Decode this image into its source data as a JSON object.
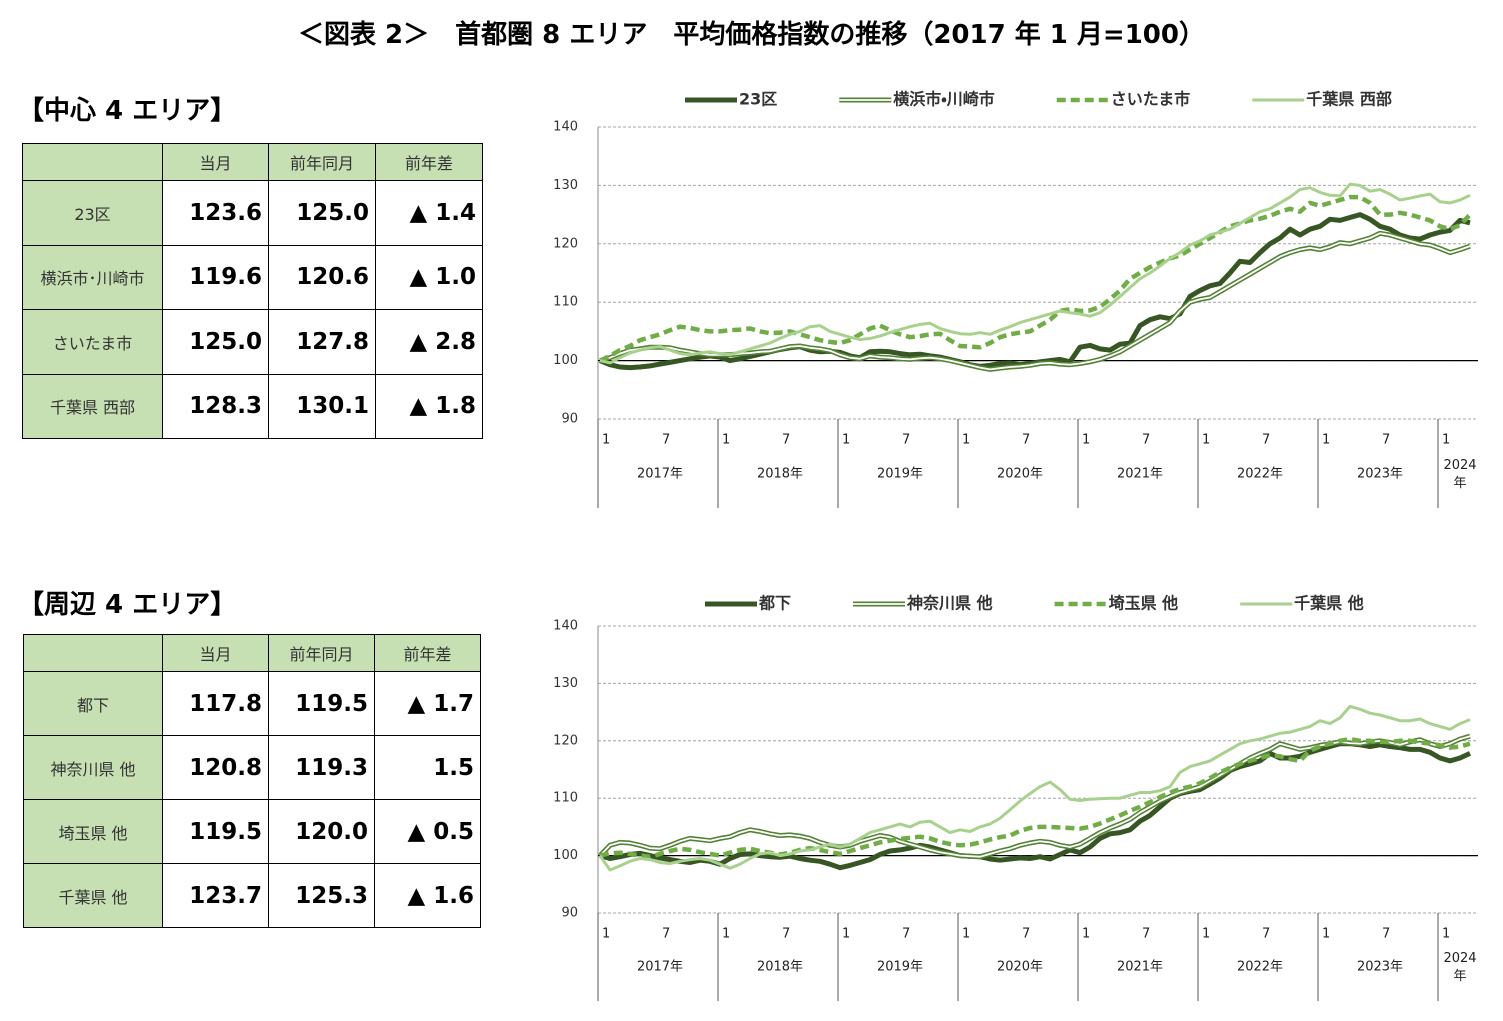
{
  "title": "＜図表 2＞　首都圏 8 エリア　平均価格指数の推移（2017 年 1 月=100）",
  "tables": [
    {
      "heading": "【中心 4 エリア】",
      "header": [
        "当月",
        "前年同月",
        "前年差"
      ],
      "rows": [
        [
          "23区",
          "123.6",
          "125.0",
          "▲ 1.4"
        ],
        [
          "横浜市･川崎市",
          "119.6",
          "120.6",
          "▲ 1.0"
        ],
        [
          "さいたま市",
          "125.0",
          "127.8",
          "▲ 2.8"
        ],
        [
          "千葉県 西部",
          "128.3",
          "130.1",
          "▲ 1.8"
        ]
      ]
    },
    {
      "heading": "【周辺 4 エリア】",
      "header": [
        "当月",
        "前年同月",
        "前年差"
      ],
      "rows": [
        [
          "都下",
          "117.8",
          "119.5",
          "▲ 1.7"
        ],
        [
          "神奈川県 他",
          "120.8",
          "119.3",
          "1.5"
        ],
        [
          "埼玉県 他",
          "119.5",
          "120.0",
          "▲ 0.5"
        ],
        [
          "千葉県 他",
          "123.7",
          "125.3",
          "▲ 1.6"
        ]
      ]
    }
  ],
  "chart_data": [
    {
      "type": "line",
      "categories": [
        "1",
        null,
        null,
        null,
        null,
        null,
        "7",
        null,
        null,
        null,
        null,
        null,
        "1",
        null,
        null,
        null,
        null,
        null,
        "7",
        null,
        null,
        null,
        null,
        null,
        "1",
        null,
        null,
        null,
        null,
        null,
        "7",
        null,
        null,
        null,
        null,
        null,
        "1",
        null,
        null,
        null,
        null,
        null,
        "7",
        null,
        null,
        null,
        null,
        null,
        "1",
        null,
        null,
        null,
        null,
        null,
        "7",
        null,
        null,
        null,
        null,
        null,
        "1",
        null,
        null,
        null,
        null,
        null,
        "7",
        null,
        null,
        null,
        null,
        null,
        "1",
        null,
        null,
        null,
        null,
        null,
        "7",
        null,
        null,
        null,
        null,
        null,
        "1",
        null,
        null,
        null
      ],
      "years": [
        "2017年",
        "2018年",
        "2019年",
        "2020年",
        "2021年",
        "2022年",
        "2023年",
        "2024年"
      ],
      "ylim": [
        90,
        140
      ],
      "yticks": [
        90,
        100,
        110,
        120,
        130,
        140
      ],
      "grid": true,
      "baseline": 100,
      "legend": "top",
      "series": [
        {
          "name": "23区",
          "color": "#375623",
          "style": "solid-thick",
          "values": [
            100,
            99.3,
            98.9,
            98.8,
            98.9,
            99.1,
            99.4,
            99.7,
            100.0,
            100.3,
            100.6,
            100.8,
            100.6,
            100.0,
            100.3,
            100.7,
            101.1,
            101.5,
            101.9,
            102.2,
            102.4,
            101.8,
            101.5,
            101.6,
            101.4,
            100.8,
            100.5,
            101.5,
            101.6,
            101.5,
            101.2,
            101.0,
            101.1,
            100.8,
            100.6,
            100.2,
            99.8,
            99.3,
            99.0,
            99.2,
            99.5,
            99.6,
            99.3,
            99.5,
            99.8,
            100.0,
            100.2,
            99.8,
            102.3,
            102.6,
            102.0,
            101.8,
            102.8,
            103.0,
            106.0,
            107.0,
            107.5,
            107.2,
            108.0,
            111.0,
            112.0,
            112.8,
            113.2,
            115.0,
            117.0,
            116.8,
            118.5,
            120.0,
            121.0,
            122.5,
            121.5,
            122.5,
            123.0,
            124.2,
            124.0,
            124.5,
            125.0,
            124.2,
            123.0,
            122.5,
            121.5,
            121.0,
            120.8,
            121.5,
            122.0,
            122.3,
            124.0,
            123.6
          ]
        },
        {
          "name": "横浜市・川崎市",
          "color": "#548235",
          "style": "double",
          "values": [
            100,
            100.5,
            101.2,
            101.8,
            102.0,
            102.3,
            102.3,
            102.2,
            101.8,
            101.5,
            101.2,
            101.0,
            101.0,
            101.0,
            101.2,
            101.3,
            101.5,
            101.6,
            102.0,
            102.4,
            102.5,
            102.2,
            102.0,
            101.7,
            101.0,
            100.5,
            100.3,
            100.8,
            100.6,
            100.5,
            100.3,
            100.2,
            100.4,
            100.5,
            100.3,
            100.0,
            99.6,
            99.2,
            98.8,
            98.5,
            98.7,
            98.9,
            99.0,
            99.2,
            99.5,
            99.6,
            99.4,
            99.3,
            99.5,
            99.8,
            100.2,
            100.8,
            101.5,
            102.5,
            103.5,
            104.5,
            105.5,
            106.5,
            108.5,
            110.0,
            110.5,
            110.8,
            111.8,
            112.8,
            113.8,
            114.8,
            115.8,
            116.8,
            117.8,
            118.5,
            119.0,
            119.3,
            119.0,
            119.5,
            120.2,
            120.0,
            120.5,
            121.0,
            121.8,
            121.5,
            121.0,
            120.5,
            120.0,
            119.8,
            119.2,
            118.5,
            119.0,
            119.6
          ]
        },
        {
          "name": "さいたま市",
          "color": "#70ad47",
          "style": "dashed",
          "values": [
            100,
            100.8,
            101.8,
            102.5,
            103.5,
            104.0,
            104.5,
            105.2,
            105.8,
            105.6,
            105.2,
            105.0,
            105.0,
            105.2,
            105.3,
            105.5,
            105.0,
            104.7,
            104.8,
            105.0,
            104.5,
            104.0,
            103.5,
            103.2,
            103.0,
            103.5,
            104.5,
            105.5,
            106.0,
            105.2,
            104.5,
            104.0,
            104.2,
            104.5,
            104.6,
            103.5,
            102.5,
            102.4,
            102.3,
            103.0,
            104.0,
            104.5,
            104.8,
            105.0,
            106.0,
            107.0,
            108.5,
            108.8,
            108.5,
            108.6,
            109.2,
            110.5,
            112.0,
            114.0,
            115.0,
            116.0,
            116.8,
            117.5,
            118.0,
            119.0,
            120.0,
            121.0,
            122.0,
            123.0,
            123.5,
            124.0,
            124.3,
            124.8,
            125.5,
            126.0,
            125.5,
            127.0,
            126.5,
            127.0,
            127.5,
            128.0,
            128.0,
            127.0,
            125.0,
            125.0,
            125.3,
            125.0,
            124.5,
            124.0,
            123.0,
            122.5,
            123.2,
            125.0
          ]
        },
        {
          "name": "千葉県 西部",
          "color": "#a9d18e",
          "style": "solid",
          "values": [
            100,
            99.6,
            100.5,
            101.3,
            101.8,
            102.2,
            102.4,
            101.8,
            101.2,
            101.0,
            101.3,
            101.5,
            101.2,
            101.0,
            101.5,
            102.0,
            102.5,
            103.0,
            103.8,
            104.5,
            105.0,
            105.8,
            106.0,
            105.0,
            104.5,
            104.0,
            103.6,
            103.8,
            104.2,
            104.8,
            105.3,
            105.8,
            106.2,
            106.4,
            105.5,
            105.0,
            104.6,
            104.5,
            104.8,
            104.5,
            105.2,
            105.8,
            106.5,
            107.0,
            107.5,
            108.0,
            108.5,
            108.2,
            108.0,
            107.6,
            108.2,
            109.5,
            111.0,
            112.5,
            114.0,
            115.0,
            116.2,
            117.5,
            118.5,
            119.8,
            120.5,
            121.5,
            122.0,
            122.5,
            123.5,
            124.5,
            125.5,
            126.0,
            127.0,
            128.0,
            129.3,
            129.6,
            128.8,
            128.3,
            128.2,
            130.2,
            130.0,
            129.0,
            129.3,
            128.5,
            127.5,
            127.8,
            128.2,
            128.5,
            127.2,
            127.0,
            127.5,
            128.3
          ]
        }
      ]
    },
    {
      "type": "line",
      "categories": [
        "1",
        null,
        null,
        null,
        null,
        null,
        "7",
        null,
        null,
        null,
        null,
        null,
        "1",
        null,
        null,
        null,
        null,
        null,
        "7",
        null,
        null,
        null,
        null,
        null,
        "1",
        null,
        null,
        null,
        null,
        null,
        "7",
        null,
        null,
        null,
        null,
        null,
        "1",
        null,
        null,
        null,
        null,
        null,
        "7",
        null,
        null,
        null,
        null,
        null,
        "1",
        null,
        null,
        null,
        null,
        null,
        "7",
        null,
        null,
        null,
        null,
        null,
        "1",
        null,
        null,
        null,
        null,
        null,
        "7",
        null,
        null,
        null,
        null,
        null,
        "1",
        null,
        null,
        null,
        null,
        null,
        "7",
        null,
        null,
        null,
        null,
        null,
        "1",
        null,
        null,
        null
      ],
      "years": [
        "2017年",
        "2018年",
        "2019年",
        "2020年",
        "2021年",
        "2022年",
        "2023年",
        "2024年"
      ],
      "ylim": [
        90,
        140
      ],
      "yticks": [
        90,
        100,
        110,
        120,
        130,
        140
      ],
      "grid": true,
      "baseline": 100,
      "legend": "top",
      "series": [
        {
          "name": "都下",
          "color": "#375623",
          "style": "solid-thick",
          "values": [
            100,
            99.5,
            99.8,
            100.2,
            100.4,
            100.0,
            99.6,
            99.3,
            99.0,
            98.8,
            99.2,
            99.0,
            98.5,
            99.5,
            100.2,
            100.3,
            100.0,
            99.8,
            99.7,
            99.9,
            99.5,
            99.2,
            99.0,
            98.5,
            97.9,
            98.3,
            98.8,
            99.3,
            100.2,
            100.8,
            101.0,
            101.3,
            101.8,
            101.5,
            101.0,
            100.5,
            100.0,
            99.9,
            99.8,
            99.4,
            99.2,
            99.4,
            99.6,
            99.5,
            99.8,
            99.4,
            100.2,
            101.0,
            100.5,
            101.5,
            103.0,
            103.8,
            104.0,
            104.5,
            106.0,
            107.0,
            108.5,
            110.0,
            110.8,
            111.2,
            111.5,
            112.5,
            113.5,
            114.8,
            115.5,
            116.0,
            116.5,
            117.8,
            117.0,
            117.0,
            117.3,
            118.0,
            118.5,
            119.0,
            119.5,
            119.5,
            119.3,
            119.0,
            119.3,
            119.0,
            118.8,
            118.5,
            118.5,
            118.0,
            117.0,
            116.5,
            117.0,
            117.8
          ]
        },
        {
          "name": "神奈川県 他",
          "color": "#548235",
          "style": "double",
          "values": [
            100,
            101.8,
            102.3,
            102.2,
            101.8,
            101.3,
            101.2,
            101.8,
            102.5,
            103.0,
            102.8,
            102.6,
            103.0,
            103.3,
            104.0,
            104.5,
            104.2,
            103.8,
            103.5,
            103.6,
            103.4,
            103.0,
            102.3,
            101.8,
            101.5,
            101.8,
            102.5,
            103.0,
            103.5,
            103.2,
            102.5,
            102.0,
            101.5,
            101.0,
            100.6,
            100.3,
            100.0,
            99.9,
            99.8,
            100.3,
            100.8,
            101.2,
            101.8,
            102.2,
            102.5,
            102.3,
            101.8,
            101.5,
            102.0,
            103.0,
            104.0,
            104.8,
            105.5,
            106.3,
            107.5,
            108.5,
            109.5,
            110.3,
            111.0,
            111.5,
            112.0,
            113.0,
            114.0,
            115.0,
            116.0,
            117.0,
            117.8,
            118.5,
            119.5,
            119.0,
            118.5,
            118.8,
            119.2,
            119.5,
            119.8,
            119.6,
            119.5,
            119.8,
            120.0,
            119.7,
            119.3,
            119.8,
            120.2,
            119.5,
            119.0,
            119.5,
            120.3,
            120.8
          ]
        },
        {
          "name": "埼玉県 他",
          "color": "#70ad47",
          "style": "dashed",
          "values": [
            100,
            100.4,
            100.5,
            100.3,
            100.0,
            99.8,
            100.3,
            100.8,
            101.2,
            101.0,
            100.6,
            100.3,
            100.0,
            100.5,
            101.0,
            101.2,
            100.8,
            100.5,
            100.2,
            100.5,
            101.0,
            101.3,
            101.0,
            100.6,
            100.3,
            100.8,
            101.3,
            101.8,
            102.3,
            102.6,
            102.9,
            103.1,
            103.3,
            103.0,
            102.4,
            102.0,
            101.8,
            101.9,
            102.3,
            102.8,
            103.2,
            103.5,
            104.3,
            104.8,
            105.0,
            105.0,
            104.9,
            104.8,
            104.7,
            105.0,
            105.6,
            106.3,
            107.0,
            107.8,
            108.5,
            109.3,
            110.2,
            111.0,
            111.6,
            112.0,
            112.6,
            113.5,
            114.5,
            115.3,
            116.0,
            116.5,
            117.0,
            117.5,
            117.3,
            116.8,
            116.5,
            118.3,
            119.0,
            119.5,
            120.0,
            120.3,
            120.0,
            120.0,
            119.8,
            119.8,
            120.0,
            120.0,
            119.7,
            119.5,
            119.2,
            118.8,
            119.0,
            119.5
          ]
        },
        {
          "name": "千葉県 他",
          "color": "#a9d18e",
          "style": "solid",
          "values": [
            100,
            97.5,
            98.2,
            99.0,
            99.5,
            99.3,
            98.8,
            98.6,
            99.0,
            99.3,
            99.5,
            99.2,
            98.5,
            97.8,
            98.5,
            99.5,
            100.3,
            100.5,
            100.0,
            100.3,
            100.8,
            101.0,
            101.5,
            102.0,
            101.5,
            102.0,
            103.0,
            104.0,
            104.5,
            105.0,
            105.5,
            105.0,
            105.8,
            106.0,
            105.0,
            104.0,
            104.5,
            104.2,
            105.0,
            105.5,
            106.5,
            108.0,
            109.5,
            110.8,
            112.0,
            112.8,
            111.5,
            109.8,
            109.6,
            109.8,
            109.9,
            110.0,
            110.0,
            110.5,
            111.0,
            111.0,
            111.3,
            112.0,
            114.5,
            115.5,
            116.0,
            116.5,
            117.5,
            118.5,
            119.5,
            120.0,
            120.3,
            120.8,
            121.3,
            121.5,
            122.0,
            122.5,
            123.5,
            123.0,
            124.0,
            126.0,
            125.5,
            124.8,
            124.5,
            124.0,
            123.5,
            123.5,
            123.8,
            123.0,
            122.5,
            122.0,
            123.0,
            123.7
          ]
        }
      ]
    }
  ]
}
